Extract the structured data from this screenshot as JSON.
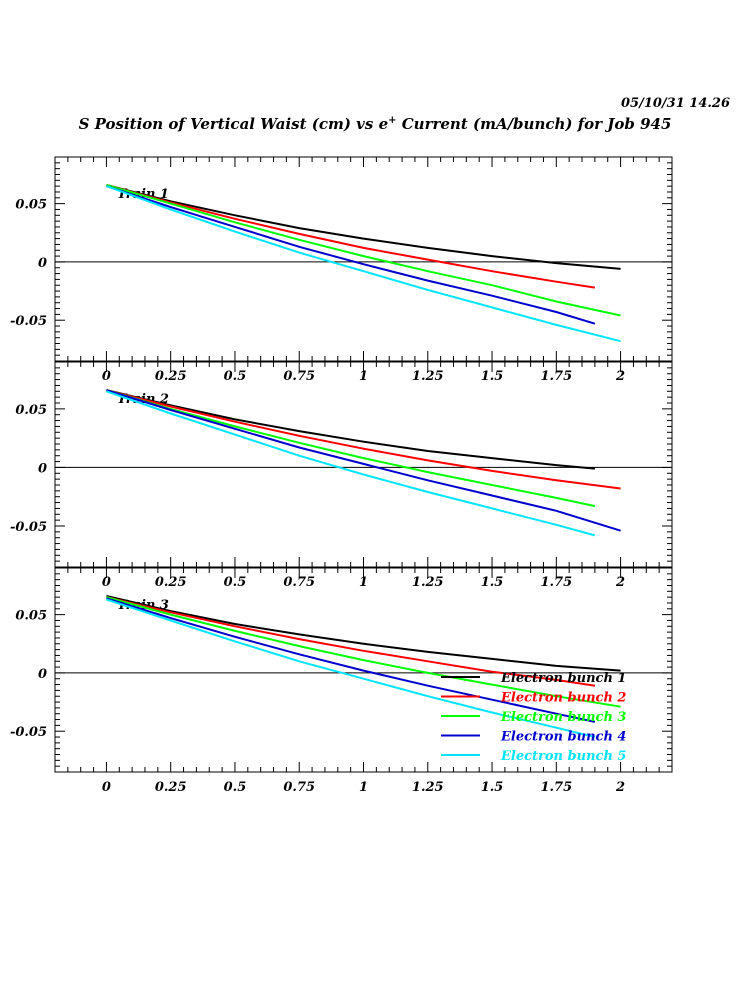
{
  "header": {
    "timestamp": "05/10/31   14.26",
    "title_main": "S Position of Vertical Waist (cm) vs e",
    "title_sup": "+",
    "title_rest": " Current (mA/bunch) for Job 945"
  },
  "chart_data": [
    {
      "type": "line",
      "title": "Train 1",
      "xlim": [
        -0.2,
        2.2
      ],
      "ylim": [
        -0.085,
        0.09
      ],
      "xticks": [
        "0",
        "0.25",
        "0.5",
        "0.75",
        "1",
        "1.25",
        "1.5",
        "1.75",
        "2"
      ],
      "yticks": [
        "0.05",
        "0",
        "-0.05"
      ],
      "series": [
        {
          "name": "Electron bunch 1",
          "color": "#000000",
          "x": [
            0,
            0.25,
            0.5,
            0.75,
            1.0,
            1.25,
            1.5,
            1.75,
            2.0
          ],
          "y": [
            0.066,
            0.052,
            0.04,
            0.029,
            0.02,
            0.012,
            0.005,
            -0.001,
            -0.006
          ]
        },
        {
          "name": "Electron bunch 2",
          "color": "#ff0000",
          "x": [
            0,
            0.25,
            0.5,
            0.75,
            1.0,
            1.25,
            1.5,
            1.75,
            1.9
          ],
          "y": [
            0.066,
            0.051,
            0.037,
            0.024,
            0.012,
            0.002,
            -0.008,
            -0.017,
            -0.022
          ]
        },
        {
          "name": "Electron bunch 3",
          "color": "#00ff00",
          "x": [
            0,
            0.25,
            0.5,
            0.75,
            1.0,
            1.25,
            1.5,
            1.75,
            2.0
          ],
          "y": [
            0.066,
            0.05,
            0.034,
            0.019,
            0.005,
            -0.008,
            -0.02,
            -0.034,
            -0.046
          ]
        },
        {
          "name": "Electron bunch 4",
          "color": "#0000cc",
          "x": [
            0,
            0.25,
            0.5,
            0.75,
            1.0,
            1.25,
            1.5,
            1.75,
            1.9
          ],
          "y": [
            0.065,
            0.047,
            0.03,
            0.013,
            -0.002,
            -0.016,
            -0.029,
            -0.043,
            -0.053
          ]
        },
        {
          "name": "Electron bunch 5",
          "color": "#00e5ff",
          "x": [
            0,
            0.25,
            0.5,
            0.75,
            1.0,
            1.25,
            1.5,
            1.75,
            2.0
          ],
          "y": [
            0.065,
            0.045,
            0.026,
            0.008,
            -0.008,
            -0.024,
            -0.039,
            -0.054,
            -0.068
          ]
        }
      ]
    },
    {
      "type": "line",
      "title": "Train 2",
      "xlim": [
        -0.2,
        2.2
      ],
      "ylim": [
        -0.085,
        0.09
      ],
      "xticks": [
        "0",
        "0.25",
        "0.5",
        "0.75",
        "1",
        "1.25",
        "1.5",
        "1.75",
        "2"
      ],
      "yticks": [
        "0.05",
        "0",
        "-0.05"
      ],
      "series": [
        {
          "name": "Electron bunch 1",
          "color": "#000000",
          "x": [
            0,
            0.25,
            0.5,
            0.75,
            1.0,
            1.25,
            1.5,
            1.75,
            1.9
          ],
          "y": [
            0.066,
            0.053,
            0.041,
            0.031,
            0.022,
            0.014,
            0.008,
            0.002,
            -0.001
          ]
        },
        {
          "name": "Electron bunch 2",
          "color": "#ff0000",
          "x": [
            0,
            0.25,
            0.5,
            0.75,
            1.0,
            1.25,
            1.5,
            1.75,
            2.0
          ],
          "y": [
            0.066,
            0.052,
            0.039,
            0.027,
            0.016,
            0.006,
            -0.003,
            -0.011,
            -0.018
          ]
        },
        {
          "name": "Electron bunch 3",
          "color": "#00ff00",
          "x": [
            0,
            0.25,
            0.5,
            0.75,
            1.0,
            1.25,
            1.5,
            1.75,
            1.9
          ],
          "y": [
            0.066,
            0.05,
            0.035,
            0.021,
            0.008,
            -0.004,
            -0.015,
            -0.026,
            -0.033
          ]
        },
        {
          "name": "Electron bunch 4",
          "color": "#0000cc",
          "x": [
            0,
            0.25,
            0.5,
            0.75,
            1.0,
            1.25,
            1.5,
            1.75,
            2.0
          ],
          "y": [
            0.066,
            0.049,
            0.033,
            0.017,
            0.003,
            -0.011,
            -0.024,
            -0.037,
            -0.054
          ]
        },
        {
          "name": "Electron bunch 5",
          "color": "#00e5ff",
          "x": [
            0,
            0.25,
            0.5,
            0.75,
            1.0,
            1.25,
            1.5,
            1.75,
            1.9
          ],
          "y": [
            0.065,
            0.046,
            0.028,
            0.01,
            -0.006,
            -0.021,
            -0.035,
            -0.049,
            -0.058
          ]
        }
      ]
    },
    {
      "type": "line",
      "title": "Train 3",
      "xlim": [
        -0.2,
        2.2
      ],
      "ylim": [
        -0.085,
        0.09
      ],
      "xticks": [
        "0",
        "0.25",
        "0.5",
        "0.75",
        "1",
        "1.25",
        "1.5",
        "1.75",
        "2"
      ],
      "yticks": [
        "0.05",
        "0",
        "-0.05"
      ],
      "legend_position": "lower-right",
      "series": [
        {
          "name": "Electron bunch 1",
          "color": "#000000",
          "x": [
            0,
            0.25,
            0.5,
            0.75,
            1.0,
            1.25,
            1.5,
            1.75,
            2.0
          ],
          "y": [
            0.066,
            0.053,
            0.042,
            0.033,
            0.025,
            0.018,
            0.012,
            0.006,
            0.002
          ]
        },
        {
          "name": "Electron bunch 2",
          "color": "#ff0000",
          "x": [
            0,
            0.25,
            0.5,
            0.75,
            1.0,
            1.25,
            1.5,
            1.75,
            1.9
          ],
          "y": [
            0.065,
            0.052,
            0.04,
            0.029,
            0.019,
            0.01,
            0.001,
            -0.006,
            -0.011
          ]
        },
        {
          "name": "Electron bunch 3",
          "color": "#00ff00",
          "x": [
            0,
            0.25,
            0.5,
            0.75,
            1.0,
            1.25,
            1.5,
            1.75,
            2.0
          ],
          "y": [
            0.065,
            0.05,
            0.036,
            0.023,
            0.011,
            0.0,
            -0.01,
            -0.02,
            -0.029
          ]
        },
        {
          "name": "Electron bunch 4",
          "color": "#0000cc",
          "x": [
            0,
            0.25,
            0.5,
            0.75,
            1.0,
            1.25,
            1.5,
            1.75,
            1.9
          ],
          "y": [
            0.064,
            0.047,
            0.031,
            0.016,
            0.002,
            -0.011,
            -0.023,
            -0.035,
            -0.042
          ]
        },
        {
          "name": "Electron bunch 5",
          "color": "#00e5ff",
          "x": [
            0,
            0.25,
            0.5,
            0.75,
            1.0,
            1.25,
            1.5,
            1.75,
            1.9
          ],
          "y": [
            0.063,
            0.045,
            0.027,
            0.01,
            -0.005,
            -0.02,
            -0.034,
            -0.047,
            -0.055
          ]
        }
      ]
    }
  ]
}
